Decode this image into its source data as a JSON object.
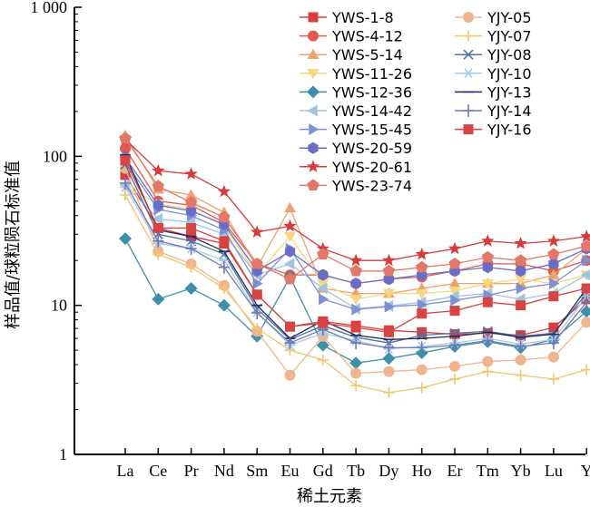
{
  "chart_data": {
    "type": "line",
    "xlabel": "稀土元素",
    "ylabel": "样品值/球粒陨石标准值",
    "yscale": "log",
    "ylim": [
      1,
      1000
    ],
    "ytick_labels": [
      "1",
      "10",
      "100",
      "1 000"
    ],
    "categories": [
      "La",
      "Ce",
      "Pr",
      "Nd",
      "Sm",
      "Eu",
      "Gd",
      "Tb",
      "Dy",
      "Ho",
      "Er",
      "Tm",
      "Yb",
      "Lu",
      "Y"
    ],
    "grid": false,
    "legend_position": "top-right (two columns)",
    "series": [
      {
        "name": "YWS-1-8",
        "marker": "square",
        "color": "#dc3c3c",
        "values": [
          75,
          33,
          29,
          26,
          11.8,
          7.2,
          7.8,
          7.3,
          6.8,
          6.6,
          6.4,
          6.5,
          6.3,
          7.1,
          11
        ]
      },
      {
        "name": "YWS-4-12",
        "marker": "circle",
        "color": "#e05a4f",
        "values": [
          113,
          50,
          47,
          36,
          19,
          16,
          16,
          14,
          15,
          15.5,
          17,
          19,
          19,
          17,
          20
        ]
      },
      {
        "name": "YWS-5-14",
        "marker": "triangle-up",
        "color": "#f0a26e",
        "values": [
          138,
          60,
          55,
          42,
          18,
          45,
          13,
          12,
          12,
          13,
          14,
          14,
          14,
          16,
          24
        ]
      },
      {
        "name": "YWS-11-26",
        "marker": "triangle-down",
        "color": "#f7d77f",
        "values": [
          63,
          48,
          44,
          34,
          16,
          29,
          14,
          11,
          12,
          12,
          12.5,
          14,
          15,
          14,
          16
        ]
      },
      {
        "name": "YWS-12-36",
        "marker": "diamond",
        "color": "#3e90a8",
        "values": [
          28,
          11,
          13,
          10,
          6.2,
          15.5,
          5.4,
          4.1,
          4.4,
          4.8,
          5.3,
          5.7,
          5.2,
          5.9,
          9.1
        ]
      },
      {
        "name": "YWS-14-42",
        "marker": "triangle-left",
        "color": "#9ec5e0",
        "values": [
          64,
          38,
          36,
          30,
          16,
          19,
          13,
          9.5,
          9.9,
          10.5,
          11.5,
          12,
          11,
          12,
          16
        ]
      },
      {
        "name": "YWS-15-45",
        "marker": "triangle-right",
        "color": "#7e8fd3",
        "values": [
          92,
          44,
          40,
          32,
          14,
          24,
          11,
          9.4,
          9.8,
          10.1,
          10.8,
          11.7,
          13,
          14,
          20
        ]
      },
      {
        "name": "YWS-20-59",
        "marker": "hexagon",
        "color": "#6a6dc8",
        "values": [
          98,
          47,
          43,
          35,
          17,
          23,
          16,
          14,
          15,
          16,
          17,
          18,
          17,
          19,
          24
        ]
      },
      {
        "name": "YWS-20-61",
        "marker": "star",
        "color": "#d73a3a",
        "values": [
          130,
          80,
          76,
          58,
          31,
          34,
          24,
          20,
          20,
          22,
          24,
          27,
          26,
          27,
          29
        ]
      },
      {
        "name": "YWS-23-74",
        "marker": "pentagon",
        "color": "#e2786a",
        "values": [
          132,
          63,
          49,
          39,
          19,
          15,
          22,
          17,
          17,
          18,
          19,
          21,
          20,
          22,
          25
        ]
      },
      {
        "name": "YJY-05",
        "marker": "circle",
        "color": "#f0b58e",
        "values": [
          83,
          23,
          19,
          13.6,
          6.7,
          3.4,
          6.2,
          3.5,
          3.6,
          3.7,
          3.9,
          4.2,
          4.3,
          4.5,
          7.7
        ]
      },
      {
        "name": "YJY-07",
        "marker": "plus",
        "color": "#f2c66e",
        "values": [
          55,
          22,
          18,
          13,
          7,
          5,
          4.3,
          2.9,
          2.6,
          2.8,
          3.2,
          3.6,
          3.4,
          3.2,
          3.7
        ]
      },
      {
        "name": "YJY-08",
        "marker": "x",
        "color": "#4f72a8",
        "values": [
          88,
          30,
          27,
          22,
          9.5,
          5.9,
          7.3,
          6.1,
          5.6,
          6.3,
          6.5,
          6.7,
          6.2,
          6.5,
          12
        ]
      },
      {
        "name": "YJY-10",
        "marker": "asterisk",
        "color": "#a9cce6",
        "values": [
          62,
          26,
          24,
          20,
          9,
          5.4,
          6.5,
          5.8,
          5.1,
          5.3,
          5.6,
          6,
          5.5,
          5.9,
          11.5
        ]
      },
      {
        "name": "YJY-13",
        "marker": "hline",
        "color": "#2a2a5a",
        "values": [
          102,
          32,
          29,
          23,
          10,
          6,
          7.9,
          6.3,
          5.9,
          6,
          6.2,
          6.6,
          6.1,
          6.4,
          13
        ]
      },
      {
        "name": "YJY-14",
        "marker": "vline",
        "color": "#6f77b5",
        "values": [
          66,
          27,
          24,
          18,
          8.9,
          5.6,
          6.9,
          5.6,
          5.2,
          5.2,
          5.4,
          5.8,
          5.3,
          5.6,
          10.5
        ]
      },
      {
        "name": "YJY-16",
        "marker": "square",
        "color": "#d84343",
        "values": [
          94,
          33,
          33,
          27,
          11.8,
          7.2,
          7.6,
          7.1,
          6.6,
          8.8,
          9.2,
          10.5,
          10,
          11.5,
          13
        ]
      }
    ]
  }
}
